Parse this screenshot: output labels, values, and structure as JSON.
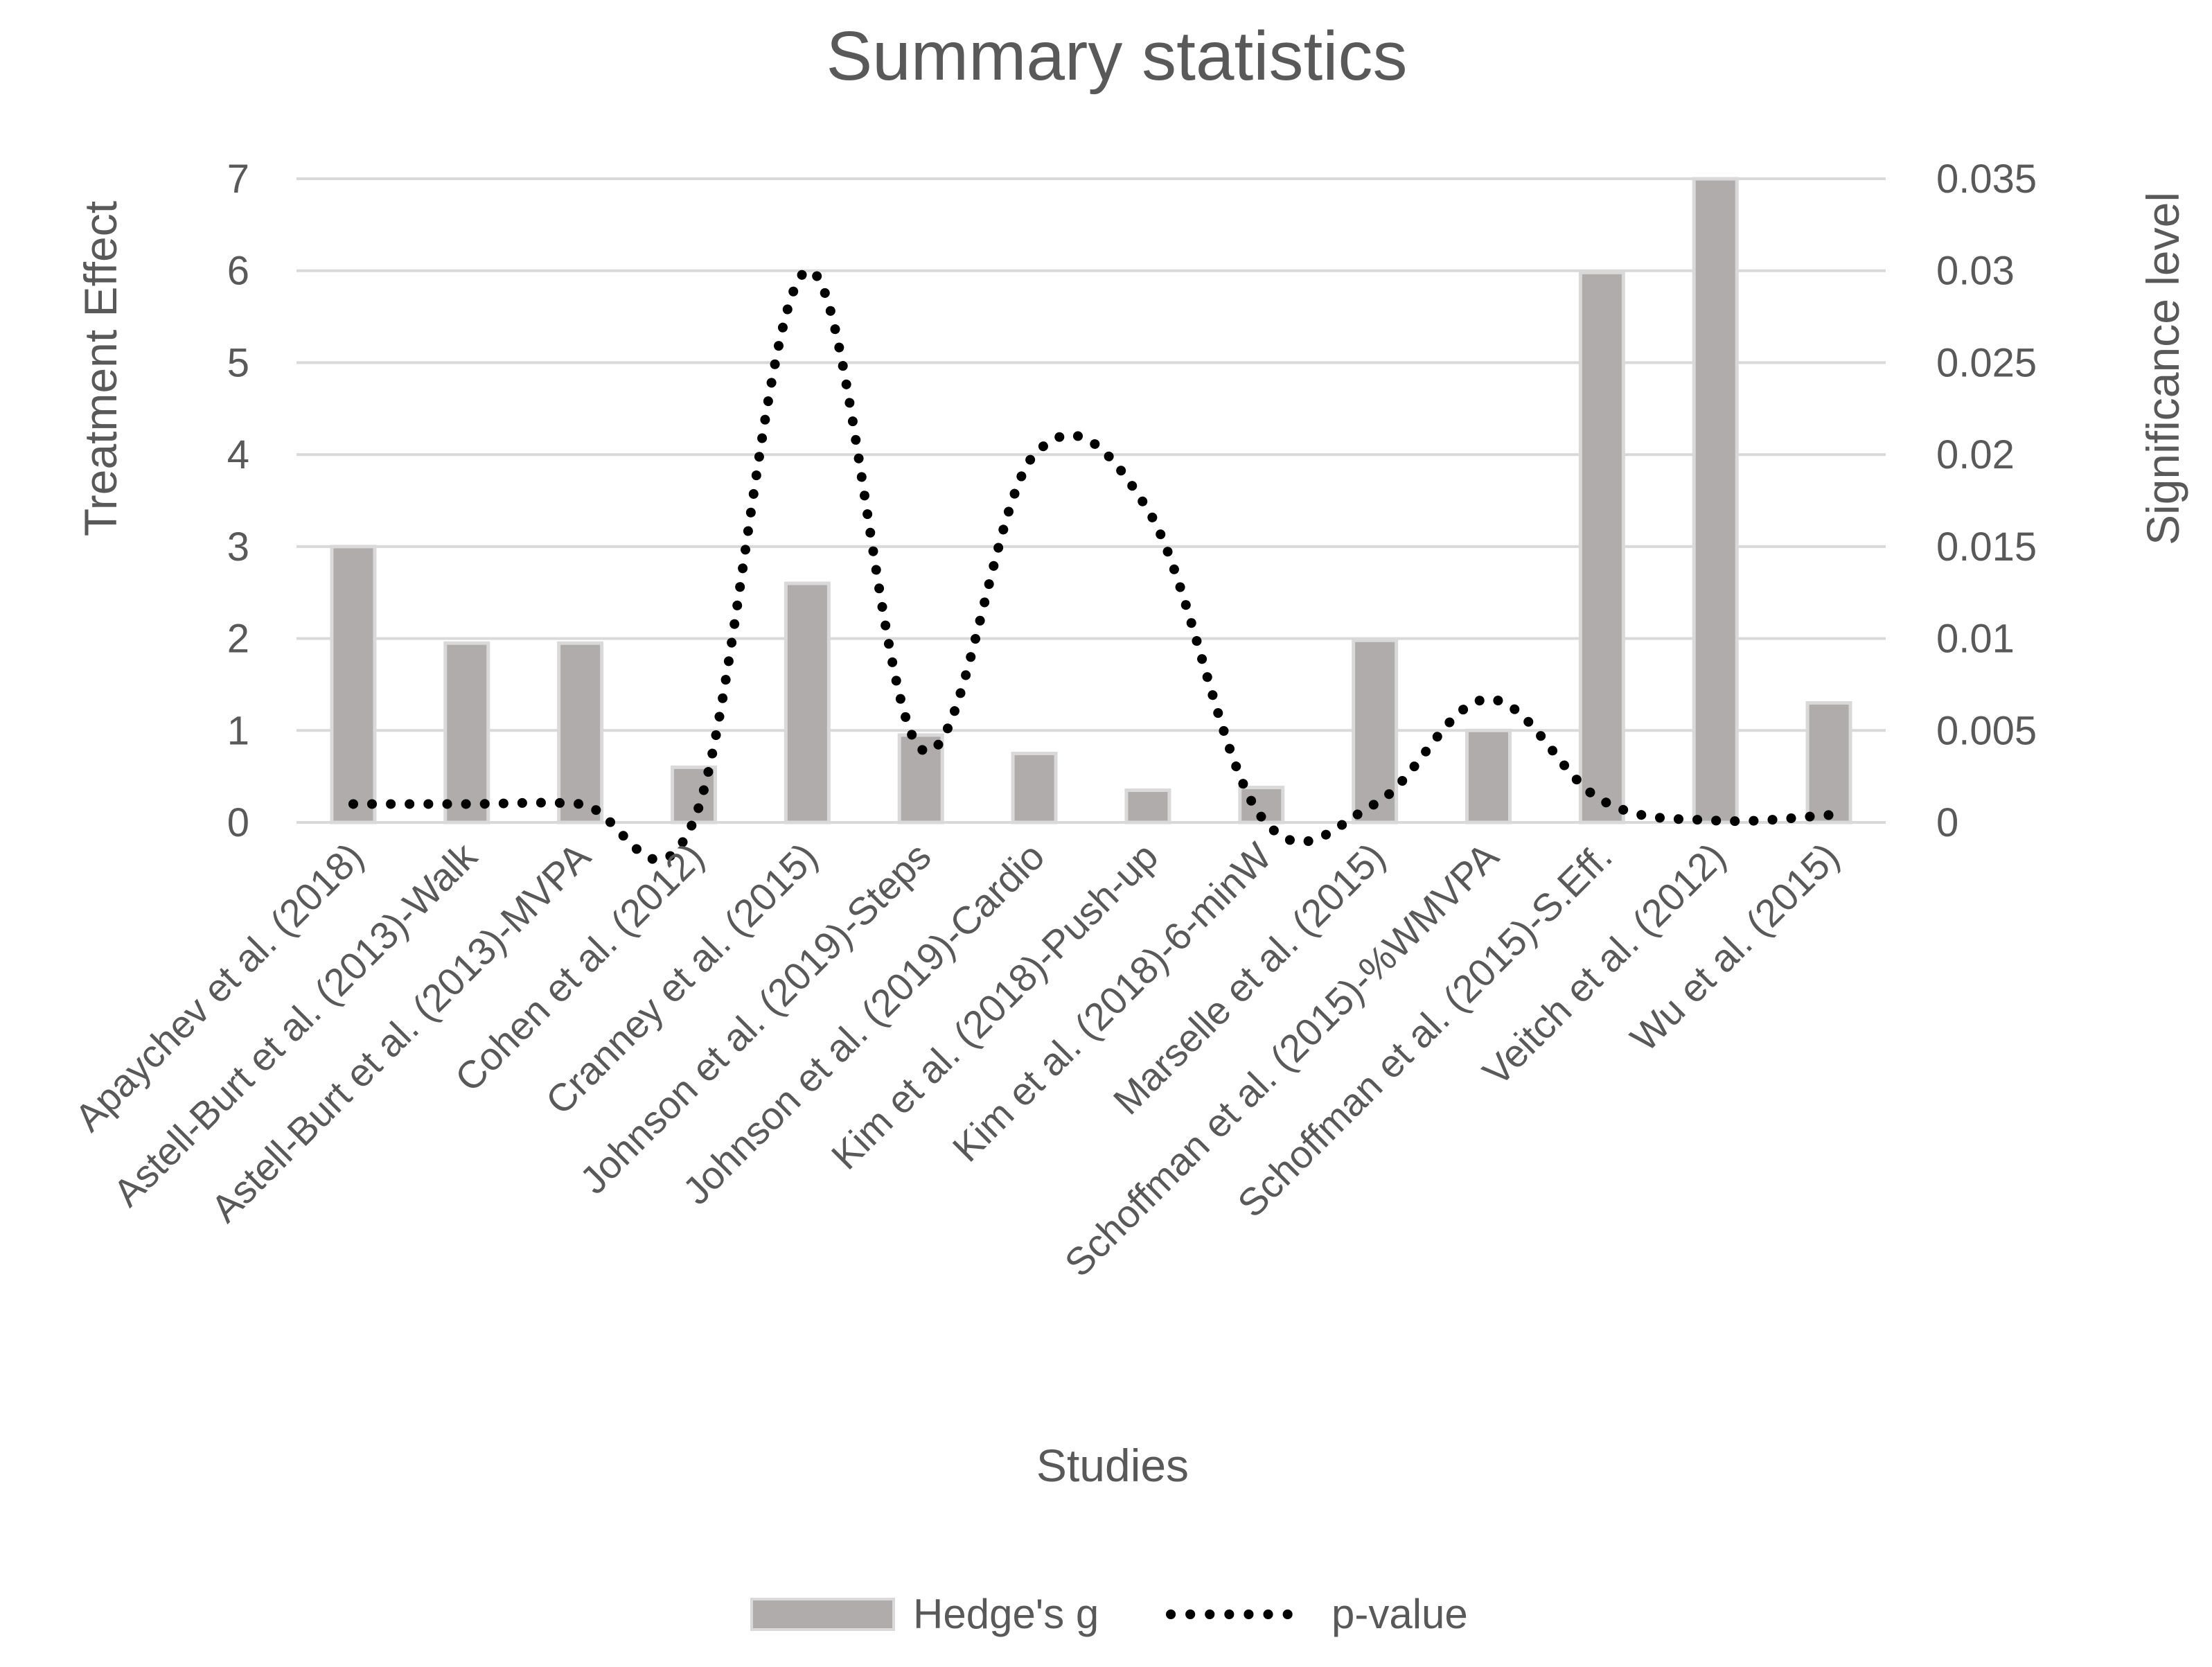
{
  "chart_data": {
    "type": "bar",
    "title": "Summary statistics",
    "xlabel": "Studies",
    "ylabel": "Treatment Effect",
    "y2label": "Significance level",
    "ylim": [
      0,
      7
    ],
    "y2lim": [
      0,
      0.035
    ],
    "yticks": [
      "0",
      "1",
      "2",
      "3",
      "4",
      "5",
      "6",
      "7"
    ],
    "y2ticks": [
      "0",
      "0.005",
      "0.01",
      "0.015",
      "0.02",
      "0.025",
      "0.03",
      "0.035"
    ],
    "grid": true,
    "legend_position": "bottom",
    "categories": [
      "Apaychev et al. (2018)",
      "Astell-Burt et al. (2013)-Walk",
      "Astell-Burt et al. (2013)-MVPA",
      "Cohen et al. (2012)",
      "Cranney et al. (2015)",
      "Johnson et al. (2019)-Steps",
      "Johnson et al. (2019)-Cardio",
      "Kim et al. (2018)-Push-up",
      "Kim et al. (2018)-6-minW",
      "Marselle et al. (2015)",
      "Schoffman et al. (2015)-%WMVPA",
      "Schoffman et al. (2015)-S.Eff.",
      "Veitch et al. (2012)",
      "Wu et al. (2015)"
    ],
    "series": [
      {
        "name": "Hedge's g",
        "type": "bar",
        "axis": "left",
        "color": "#b0acab",
        "values": [
          3.0,
          1.95,
          1.95,
          0.6,
          2.6,
          0.95,
          0.75,
          0.35,
          0.38,
          1.98,
          1.0,
          5.98,
          7.0,
          1.3
        ]
      },
      {
        "name": "p-value",
        "type": "line",
        "axis": "right",
        "style": "dotted",
        "color": "#000000",
        "values": [
          0.001,
          0.001,
          0.001,
          0.0001,
          0.03,
          0.004,
          0.02,
          0.017,
          0.0003,
          0.001,
          0.0067,
          0.0012,
          0.0001,
          0.0004
        ]
      }
    ]
  }
}
